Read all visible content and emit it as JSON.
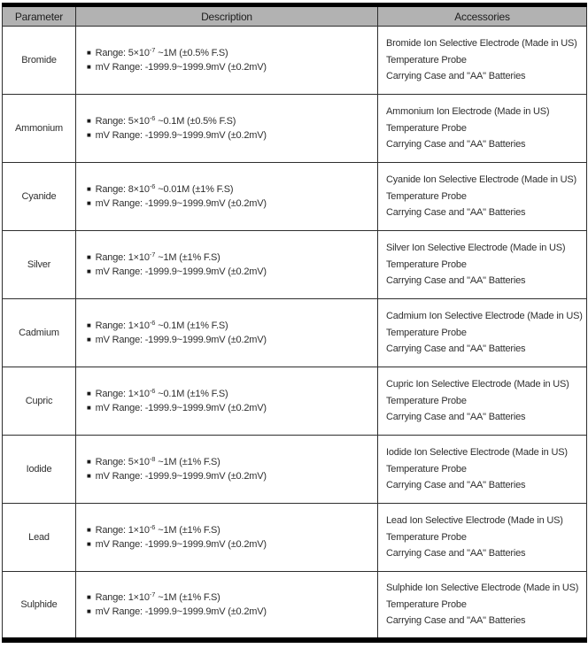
{
  "colors": {
    "header_bg": "#b2b2b2",
    "outer_border": "#000000",
    "inner_border": "#2e2e2e",
    "text": "#2f2f2f"
  },
  "table": {
    "bullet": "■",
    "headers": {
      "parameter": "Parameter",
      "description": "Description",
      "accessories": "Accessories"
    },
    "rows": [
      {
        "parameter": "Bromide",
        "range_base": "Range: 5×10",
        "range_exp": "-7",
        "range_rest": " ~1M (±0.5% F.S)",
        "mv_range": "mV Range: -1999.9~1999.9mV (±0.2mV)",
        "accessories": [
          "Bromide Ion Selective Electrode (Made in US)",
          "Temperature Probe",
          "Carrying Case and \"AA\" Batteries"
        ]
      },
      {
        "parameter": "Ammonium",
        "range_base": "Range: 5×10",
        "range_exp": "-6",
        "range_rest": " ~0.1M (±0.5% F.S)",
        "mv_range": "mV Range: -1999.9~1999.9mV (±0.2mV)",
        "accessories": [
          "Ammonium Ion Electrode (Made in US)",
          "Temperature Probe",
          "Carrying Case and \"AA\" Batteries"
        ]
      },
      {
        "parameter": "Cyanide",
        "range_base": "Range: 8×10",
        "range_exp": "-6",
        "range_rest": " ~0.01M (±1% F.S)",
        "mv_range": "mV Range: -1999.9~1999.9mV (±0.2mV)",
        "accessories": [
          "Cyanide Ion Selective Electrode (Made in US)",
          "Temperature Probe",
          "Carrying Case and \"AA\" Batteries"
        ]
      },
      {
        "parameter": "Silver",
        "range_base": "Range: 1×10",
        "range_exp": "-7",
        "range_rest": " ~1M (±1% F.S)",
        "mv_range": "mV Range: -1999.9~1999.9mV (±0.2mV)",
        "accessories": [
          "Silver Ion Selective Electrode (Made in US)",
          "Temperature Probe",
          "Carrying Case and \"AA\" Batteries"
        ]
      },
      {
        "parameter": "Cadmium",
        "range_base": "Range: 1×10",
        "range_exp": "-6",
        "range_rest": " ~0.1M (±1% F.S)",
        "mv_range": "mV Range: -1999.9~1999.9mV (±0.2mV)",
        "accessories": [
          "Cadmium Ion Selective Electrode (Made in US)",
          "Temperature Probe",
          "Carrying Case and \"AA\" Batteries"
        ]
      },
      {
        "parameter": "Cupric",
        "range_base": "Range: 1×10",
        "range_exp": "-6",
        "range_rest": " ~0.1M (±1% F.S)",
        "mv_range": "mV Range: -1999.9~1999.9mV (±0.2mV)",
        "accessories": [
          "Cupric Ion Selective Electrode (Made in US)",
          "Temperature Probe",
          "Carrying Case and \"AA\" Batteries"
        ]
      },
      {
        "parameter": "Iodide",
        "range_base": "Range: 5×10",
        "range_exp": "-8",
        "range_rest": " ~1M (±1% F.S)",
        "mv_range": "mV Range: -1999.9~1999.9mV (±0.2mV)",
        "accessories": [
          "Iodide Ion Selective Electrode (Made in US)",
          "Temperature Probe",
          "Carrying Case and \"AA\" Batteries"
        ]
      },
      {
        "parameter": "Lead",
        "range_base": "Range: 1×10",
        "range_exp": "-6",
        "range_rest": " ~1M (±1% F.S)",
        "mv_range": "mV Range: -1999.9~1999.9mV (±0.2mV)",
        "accessories": [
          "Lead Ion Selective Electrode (Made in US)",
          "Temperature Probe",
          "Carrying Case and \"AA\" Batteries"
        ]
      },
      {
        "parameter": "Sulphide",
        "range_base": "Range: 1×10",
        "range_exp": "-7",
        "range_rest": " ~1M (±1% F.S)",
        "mv_range": "mV Range: -1999.9~1999.9mV (±0.2mV)",
        "accessories": [
          "Sulphide Ion Selective Electrode (Made in US)",
          "Temperature Probe",
          "Carrying Case and \"AA\" Batteries"
        ]
      }
    ]
  }
}
